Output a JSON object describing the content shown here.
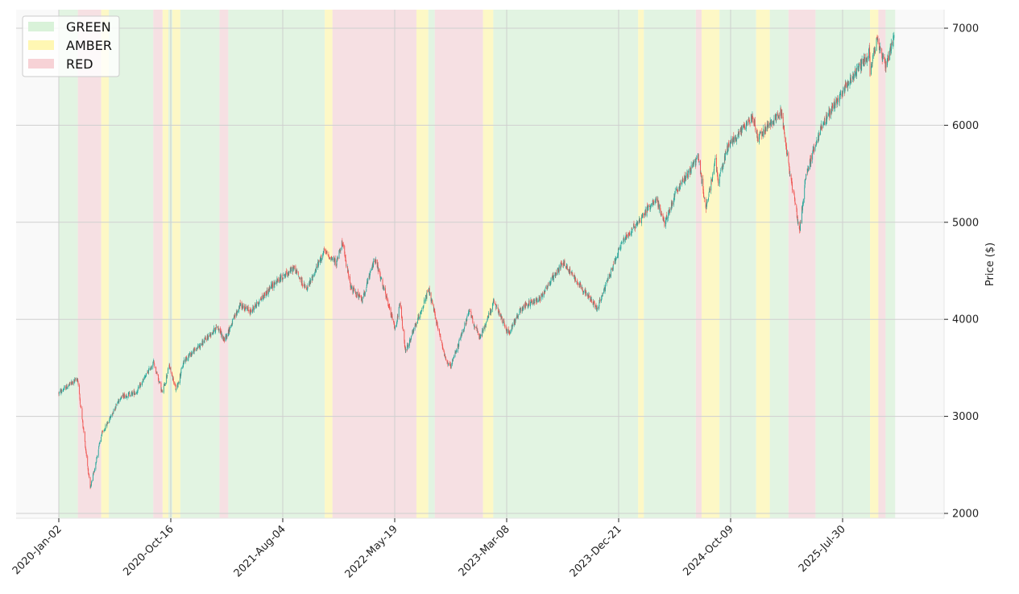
{
  "chart_data": {
    "type": "candlestick",
    "x_ticks": [
      "2020-Jan-02",
      "2020-Oct-16",
      "2021-Aug-04",
      "2022-May-19",
      "2023-Mar-08",
      "2023-Dec-21",
      "2024-Oct-09",
      "2025-Jul-30"
    ],
    "ylabel": "Price ($)",
    "y_ticks": [
      "2000",
      "3000",
      "4000",
      "5000",
      "6000",
      "7000"
    ],
    "ylim": [
      1950,
      7180
    ],
    "y_axis_side": "right",
    "grid": true,
    "legend": {
      "placement": "top-left",
      "entries": [
        {
          "label": "GREEN",
          "color": "#d9f2d9"
        },
        {
          "label": "AMBER",
          "color": "#fff7b3"
        },
        {
          "label": "RED",
          "color": "#f7d2d6"
        }
      ]
    },
    "colors": {
      "up": "#26a69a",
      "down": "#ef5350",
      "background": "#f9f9f9",
      "GREEN": "#e2f4e2",
      "AMBER": "#fdf8c6",
      "RED": "#f6e0e3"
    },
    "regimes": [
      {
        "from": "2020-01-02",
        "to": "2020-02-20",
        "state": "GREEN"
      },
      {
        "from": "2020-02-20",
        "to": "2020-04-20",
        "state": "RED"
      },
      {
        "from": "2020-04-20",
        "to": "2020-05-10",
        "state": "AMBER"
      },
      {
        "from": "2020-05-10",
        "to": "2020-09-01",
        "state": "GREEN"
      },
      {
        "from": "2020-09-01",
        "to": "2020-09-25",
        "state": "RED"
      },
      {
        "from": "2020-09-25",
        "to": "2020-10-10",
        "state": "AMBER"
      },
      {
        "from": "2020-10-10",
        "to": "2020-10-20",
        "state": "GREEN"
      },
      {
        "from": "2020-10-20",
        "to": "2020-11-10",
        "state": "AMBER"
      },
      {
        "from": "2020-11-10",
        "to": "2021-02-20",
        "state": "GREEN"
      },
      {
        "from": "2021-02-20",
        "to": "2021-03-15",
        "state": "RED"
      },
      {
        "from": "2021-03-15",
        "to": "2021-11-20",
        "state": "GREEN"
      },
      {
        "from": "2021-11-20",
        "to": "2021-12-10",
        "state": "AMBER"
      },
      {
        "from": "2021-12-10",
        "to": "2022-07-15",
        "state": "RED"
      },
      {
        "from": "2022-07-15",
        "to": "2022-08-15",
        "state": "AMBER"
      },
      {
        "from": "2022-08-15",
        "to": "2022-09-01",
        "state": "GREEN"
      },
      {
        "from": "2022-09-01",
        "to": "2023-01-05",
        "state": "RED"
      },
      {
        "from": "2023-01-05",
        "to": "2023-02-01",
        "state": "AMBER"
      },
      {
        "from": "2023-02-01",
        "to": "2024-02-10",
        "state": "GREEN"
      },
      {
        "from": "2024-02-10",
        "to": "2024-02-25",
        "state": "AMBER"
      },
      {
        "from": "2024-02-25",
        "to": "2024-07-10",
        "state": "GREEN"
      },
      {
        "from": "2024-07-10",
        "to": "2024-07-25",
        "state": "RED"
      },
      {
        "from": "2024-07-25",
        "to": "2024-09-10",
        "state": "AMBER"
      },
      {
        "from": "2024-09-10",
        "to": "2024-12-15",
        "state": "GREEN"
      },
      {
        "from": "2024-12-15",
        "to": "2025-01-20",
        "state": "AMBER"
      },
      {
        "from": "2025-01-20",
        "to": "2025-03-10",
        "state": "GREEN"
      },
      {
        "from": "2025-03-10",
        "to": "2025-05-20",
        "state": "RED"
      },
      {
        "from": "2025-05-20",
        "to": "2025-10-10",
        "state": "GREEN"
      },
      {
        "from": "2025-10-10",
        "to": "2025-11-01",
        "state": "AMBER"
      },
      {
        "from": "2025-11-01",
        "to": "2025-11-20",
        "state": "RED"
      },
      {
        "from": "2025-11-20",
        "to": "2025-12-15",
        "state": "GREEN"
      }
    ],
    "price_path": [
      [
        "2020-01-02",
        3240
      ],
      [
        "2020-02-19",
        3390
      ],
      [
        "2020-03-23",
        2250
      ],
      [
        "2020-04-20",
        2800
      ],
      [
        "2020-06-08",
        3200
      ],
      [
        "2020-07-20",
        3250
      ],
      [
        "2020-09-02",
        3560
      ],
      [
        "2020-09-24",
        3240
      ],
      [
        "2020-10-12",
        3520
      ],
      [
        "2020-10-30",
        3270
      ],
      [
        "2020-11-20",
        3580
      ],
      [
        "2021-01-05",
        3750
      ],
      [
        "2021-02-15",
        3930
      ],
      [
        "2021-03-04",
        3780
      ],
      [
        "2021-04-15",
        4150
      ],
      [
        "2021-05-12",
        4080
      ],
      [
        "2021-07-10",
        4360
      ],
      [
        "2021-09-02",
        4530
      ],
      [
        "2021-10-04",
        4300
      ],
      [
        "2021-11-18",
        4700
      ],
      [
        "2021-12-20",
        4580
      ],
      [
        "2022-01-03",
        4800
      ],
      [
        "2022-01-27",
        4320
      ],
      [
        "2022-02-24",
        4200
      ],
      [
        "2022-03-29",
        4630
      ],
      [
        "2022-05-20",
        3900
      ],
      [
        "2022-06-02",
        4160
      ],
      [
        "2022-06-16",
        3660
      ],
      [
        "2022-08-16",
        4300
      ],
      [
        "2022-09-30",
        3580
      ],
      [
        "2022-10-12",
        3500
      ],
      [
        "2022-11-30",
        4080
      ],
      [
        "2022-12-28",
        3800
      ],
      [
        "2023-02-02",
        4180
      ],
      [
        "2023-03-13",
        3850
      ],
      [
        "2023-04-15",
        4120
      ],
      [
        "2023-06-01",
        4220
      ],
      [
        "2023-07-31",
        4590
      ],
      [
        "2023-10-27",
        4110
      ],
      [
        "2023-12-28",
        4780
      ],
      [
        "2024-03-28",
        5250
      ],
      [
        "2024-04-19",
        4980
      ],
      [
        "2024-05-20",
        5320
      ],
      [
        "2024-07-16",
        5670
      ],
      [
        "2024-08-05",
        5150
      ],
      [
        "2024-08-30",
        5640
      ],
      [
        "2024-09-06",
        5400
      ],
      [
        "2024-09-30",
        5770
      ],
      [
        "2024-12-06",
        6090
      ],
      [
        "2024-12-20",
        5870
      ],
      [
        "2025-02-19",
        6140
      ],
      [
        "2025-03-13",
        5520
      ],
      [
        "2025-04-08",
        4920
      ],
      [
        "2025-04-25",
        5500
      ],
      [
        "2025-06-06",
        6000
      ],
      [
        "2025-07-31",
        6350
      ],
      [
        "2025-10-08",
        6750
      ],
      [
        "2025-10-10",
        6550
      ],
      [
        "2025-10-28",
        6880
      ],
      [
        "2025-11-20",
        6600
      ],
      [
        "2025-12-12",
        6900
      ]
    ]
  }
}
